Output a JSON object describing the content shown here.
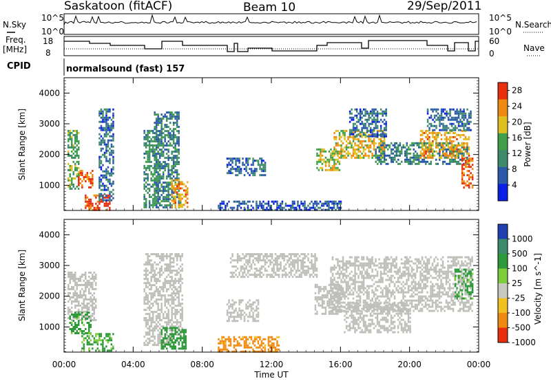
{
  "header": {
    "station": "Saskatoon (fitACF)",
    "beam": "Beam 10",
    "date": "29/Sep/2011"
  },
  "param_panels": {
    "nsky_label": "N.Sky",
    "nsearch_label": "N.Search",
    "freq_label_1": "Freq.",
    "freq_label_2": "[MHz]",
    "nave_label": "Nave",
    "cpid_label": "CPID",
    "cpid_value": "normalsound (fast) 157",
    "noise_ticks_left": [
      "10^5",
      "10^0"
    ],
    "noise_ticks_right": [
      "10^5",
      "10^0"
    ],
    "freq_ticks": [
      "18",
      "8"
    ],
    "nave_ticks": [
      "60",
      "0"
    ]
  },
  "colors": {
    "power_scale": [
      "#0a1ee6",
      "#2a5aa8",
      "#3f8a6a",
      "#3fa04a",
      "#e0c020",
      "#f08a10",
      "#e83010"
    ],
    "velocity_scale": [
      "#1f3fb0",
      "#3f8a6a",
      "#2f9a3a",
      "#7ccc3c",
      "#c8c8c0",
      "#f0c020",
      "#f08a10",
      "#e83010"
    ],
    "ground_scatter": "#bebeb8"
  },
  "chart_data": [
    {
      "type": "heatmap",
      "title": "",
      "ylabel": "Slant Range [km]",
      "xlabel": "",
      "x_tick_labels": [
        "00:00",
        "04:00",
        "08:00",
        "12:00",
        "16:00",
        "20:00",
        "00:00"
      ],
      "y_tick_labels": [
        "1000",
        "2000",
        "3000",
        "4000"
      ],
      "xlim_hours": [
        0,
        24
      ],
      "ylim_km": [
        180,
        4500
      ],
      "colorbar": {
        "label": "Power [dB]",
        "ticks": [
          "4",
          "8",
          "12",
          "16",
          "20",
          "24",
          "28"
        ],
        "range": [
          0,
          30
        ]
      },
      "scatter_regions": [
        {
          "t0": 0.2,
          "t1": 0.8,
          "r0": 900,
          "r1": 2800,
          "value": 14
        },
        {
          "t0": 0.8,
          "t1": 1.6,
          "r0": 900,
          "r1": 1500,
          "value": 26
        },
        {
          "t0": 1.2,
          "t1": 2.6,
          "r0": 200,
          "r1": 700,
          "value": 28
        },
        {
          "t0": 2.0,
          "t1": 2.8,
          "r0": 500,
          "r1": 3500,
          "value": 8
        },
        {
          "t0": 4.6,
          "t1": 5.4,
          "r0": 300,
          "r1": 2800,
          "value": 12
        },
        {
          "t0": 5.2,
          "t1": 6.6,
          "r0": 300,
          "r1": 3400,
          "value": 10
        },
        {
          "t0": 6.2,
          "t1": 7.1,
          "r0": 300,
          "r1": 1200,
          "value": 22
        },
        {
          "t0": 8.9,
          "t1": 16.0,
          "r0": 200,
          "r1": 500,
          "value": 6
        },
        {
          "t0": 9.4,
          "t1": 11.6,
          "r0": 1300,
          "r1": 1900,
          "value": 8
        },
        {
          "t0": 14.6,
          "t1": 16.0,
          "r0": 1500,
          "r1": 2200,
          "value": 18
        },
        {
          "t0": 15.6,
          "t1": 18.5,
          "r0": 1900,
          "r1": 2800,
          "value": 20
        },
        {
          "t0": 16.5,
          "t1": 18.6,
          "r0": 2600,
          "r1": 3500,
          "value": 8
        },
        {
          "t0": 18.0,
          "t1": 23.4,
          "r0": 1700,
          "r1": 2400,
          "value": 10
        },
        {
          "t0": 20.6,
          "t1": 23.4,
          "r0": 1900,
          "r1": 2800,
          "value": 22
        },
        {
          "t0": 23.0,
          "t1": 23.6,
          "r0": 900,
          "r1": 1900,
          "value": 26
        },
        {
          "t0": 21.0,
          "t1": 23.5,
          "r0": 2800,
          "r1": 3500,
          "value": 8
        }
      ]
    },
    {
      "type": "heatmap",
      "title": "",
      "ylabel": "Slant Range [km]",
      "xlabel": "Time UT",
      "x_tick_labels": [
        "00:00",
        "04:00",
        "08:00",
        "12:00",
        "16:00",
        "20:00",
        "00:00"
      ],
      "y_tick_labels": [
        "1000",
        "2000",
        "3000",
        "4000"
      ],
      "xlim_hours": [
        0,
        24
      ],
      "ylim_km": [
        180,
        4500
      ],
      "colorbar": {
        "label": "Velocity [m s^-1]",
        "ticks": [
          "1000",
          "500",
          "100",
          "25",
          "-25",
          "-100",
          "-500",
          "-1000"
        ],
        "range": [
          -1000,
          1000
        ]
      },
      "scatter_regions": [
        {
          "t0": 0.2,
          "t1": 1.8,
          "r0": 1200,
          "r1": 2800,
          "value": 0
        },
        {
          "t0": 0.3,
          "t1": 1.5,
          "r0": 800,
          "r1": 1500,
          "value": 150
        },
        {
          "t0": 1.0,
          "t1": 2.8,
          "r0": 200,
          "r1": 800,
          "value": 120
        },
        {
          "t0": 4.6,
          "t1": 6.8,
          "r0": 400,
          "r1": 3400,
          "value": 0
        },
        {
          "t0": 5.6,
          "t1": 7.0,
          "r0": 300,
          "r1": 1000,
          "value": 200
        },
        {
          "t0": 8.9,
          "t1": 12.4,
          "r0": 200,
          "r1": 700,
          "value": -150
        },
        {
          "t0": 9.4,
          "t1": 11.2,
          "r0": 1200,
          "r1": 1900,
          "value": 0
        },
        {
          "t0": 9.6,
          "t1": 14.6,
          "r0": 2600,
          "r1": 3400,
          "value": 0
        },
        {
          "t0": 14.5,
          "t1": 16.0,
          "r0": 1400,
          "r1": 2400,
          "value": 0
        },
        {
          "t0": 15.4,
          "t1": 23.6,
          "r0": 1500,
          "r1": 3300,
          "value": 0
        },
        {
          "t0": 16.2,
          "t1": 20.0,
          "r0": 800,
          "r1": 1800,
          "value": 0
        },
        {
          "t0": 22.6,
          "t1": 23.6,
          "r0": 1900,
          "r1": 2900,
          "value": 150
        }
      ]
    }
  ]
}
